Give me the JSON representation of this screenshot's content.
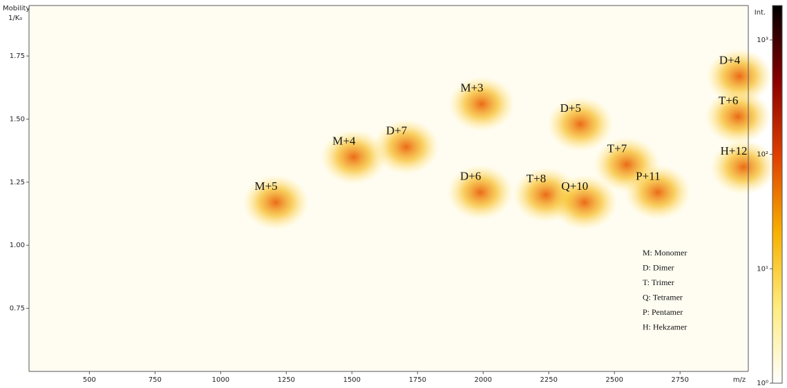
{
  "chart_data": {
    "type": "heatmap",
    "y_label_line1": "Mobility",
    "y_label_line2": "1/K₀",
    "x_label": "m/z",
    "xlim": [
      270,
      3010
    ],
    "xticks": [
      500,
      750,
      1000,
      1250,
      1500,
      1750,
      2000,
      2250,
      2500,
      2750
    ],
    "ylim": [
      0.5,
      1.95
    ],
    "yticks": [
      {
        "value": 0.75,
        "label": "0.75"
      },
      {
        "value": 1.0,
        "label": "1.00"
      },
      {
        "value": 1.25,
        "label": "1.25"
      },
      {
        "value": 1.5,
        "label": "1.50"
      },
      {
        "value": 1.75,
        "label": "1.75"
      }
    ],
    "annotations": [
      {
        "text": "M+5",
        "x": 1173,
        "y": 1.23
      },
      {
        "text": "M+4",
        "x": 1470,
        "y": 1.41
      },
      {
        "text": "D+7",
        "x": 1670,
        "y": 1.45
      },
      {
        "text": "M+3",
        "x": 1957,
        "y": 1.62
      },
      {
        "text": "D+6",
        "x": 1952,
        "y": 1.27
      },
      {
        "text": "D+5",
        "x": 2333,
        "y": 1.54
      },
      {
        "text": "T+7",
        "x": 2510,
        "y": 1.38
      },
      {
        "text": "T+8",
        "x": 2202,
        "y": 1.26
      },
      {
        "text": "Q+10",
        "x": 2349,
        "y": 1.23
      },
      {
        "text": "P+11",
        "x": 2628,
        "y": 1.27
      },
      {
        "text": "D+4",
        "x": 2939,
        "y": 1.73
      },
      {
        "text": "T+6",
        "x": 2934,
        "y": 1.57
      },
      {
        "text": "H+12",
        "x": 2955,
        "y": 1.37
      }
    ],
    "notes": [
      "M: Monomer",
      "D: Dimer",
      "T: Trimer",
      "Q: Tetramer",
      "P: Pentamer",
      "H: Hekzamer"
    ],
    "colorbar": {
      "label": "Int.",
      "log_scale": true,
      "lim": [
        1,
        2000
      ],
      "ticks": [
        {
          "value": 1,
          "label": "10⁰"
        },
        {
          "value": 10,
          "label": "10¹"
        },
        {
          "value": 100,
          "label": "10²"
        },
        {
          "value": 1000,
          "label": "10³"
        }
      ],
      "colors": [
        "#ffffff",
        "#ffec80",
        "#f7b000",
        "#e04000",
        "#8a0000",
        "#000000"
      ]
    }
  }
}
